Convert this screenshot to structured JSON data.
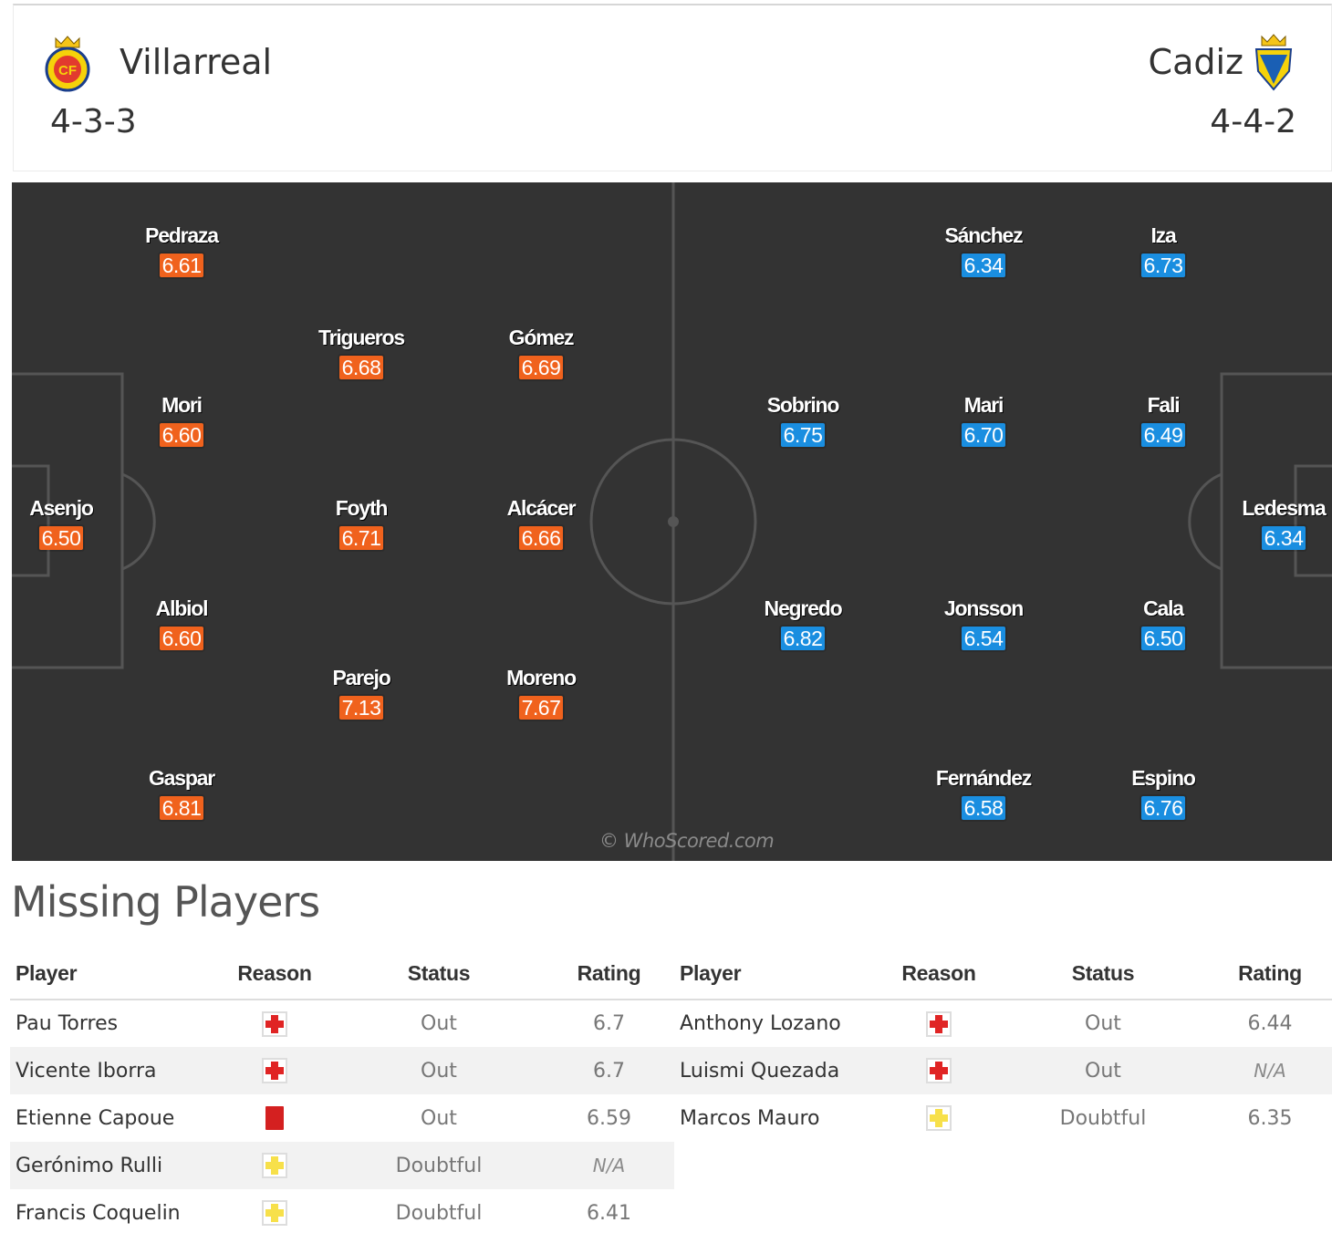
{
  "header": {
    "home": {
      "name": "Villarreal",
      "formation": "4-3-3",
      "crest_icon": "villarreal-crest-icon"
    },
    "away": {
      "name": "Cadiz",
      "formation": "4-4-2",
      "crest_icon": "cadiz-crest-icon"
    }
  },
  "colors": {
    "home_rating": "#f0621d",
    "away_rating": "#1a8ee0",
    "pitch": "#333333",
    "injury": "#e02424",
    "doubtful": "#f7e04a",
    "red_card": "#d42020"
  },
  "pitch": {
    "home_players": [
      {
        "name": "Pedraza",
        "rating": "6.61"
      },
      {
        "name": "Trigueros",
        "rating": "6.68"
      },
      {
        "name": "Gómez",
        "rating": "6.69"
      },
      {
        "name": "Mori",
        "rating": "6.60"
      },
      {
        "name": "Asenjo",
        "rating": "6.50"
      },
      {
        "name": "Foyth",
        "rating": "6.71"
      },
      {
        "name": "Alcácer",
        "rating": "6.66"
      },
      {
        "name": "Albiol",
        "rating": "6.60"
      },
      {
        "name": "Parejo",
        "rating": "7.13"
      },
      {
        "name": "Moreno",
        "rating": "7.67"
      },
      {
        "name": "Gaspar",
        "rating": "6.81"
      }
    ],
    "away_players": [
      {
        "name": "Sánchez",
        "rating": "6.34"
      },
      {
        "name": "Iza",
        "rating": "6.73"
      },
      {
        "name": "Sobrino",
        "rating": "6.75"
      },
      {
        "name": "Mari",
        "rating": "6.70"
      },
      {
        "name": "Fali",
        "rating": "6.49"
      },
      {
        "name": "Ledesma",
        "rating": "6.34"
      },
      {
        "name": "Negredo",
        "rating": "6.82"
      },
      {
        "name": "Jonsson",
        "rating": "6.54"
      },
      {
        "name": "Cala",
        "rating": "6.50"
      },
      {
        "name": "Fernández",
        "rating": "6.58"
      },
      {
        "name": "Espino",
        "rating": "6.76"
      }
    ],
    "watermark": "© WhoScored.com"
  },
  "missing": {
    "title": "Missing Players",
    "columns": [
      "Player",
      "Reason",
      "Status",
      "Rating"
    ],
    "home": [
      {
        "player": "Pau Torres",
        "reason": "injury",
        "status": "Out",
        "rating": "6.7"
      },
      {
        "player": "Vicente Iborra",
        "reason": "injury",
        "status": "Out",
        "rating": "6.7"
      },
      {
        "player": "Etienne Capoue",
        "reason": "red-card",
        "status": "Out",
        "rating": "6.59"
      },
      {
        "player": "Gerónimo Rulli",
        "reason": "doubtful",
        "status": "Doubtful",
        "rating": "N/A"
      },
      {
        "player": "Francis Coquelin",
        "reason": "doubtful",
        "status": "Doubtful",
        "rating": "6.41"
      }
    ],
    "away": [
      {
        "player": "Anthony Lozano",
        "reason": "injury",
        "status": "Out",
        "rating": "6.44"
      },
      {
        "player": "Luismi Quezada",
        "reason": "injury",
        "status": "Out",
        "rating": "N/A"
      },
      {
        "player": "Marcos Mauro",
        "reason": "doubtful",
        "status": "Doubtful",
        "rating": "6.35"
      }
    ]
  }
}
